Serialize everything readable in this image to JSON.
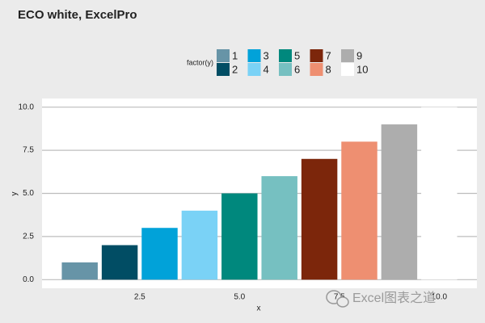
{
  "chart_data": {
    "type": "bar",
    "title": "ECO white, ExcelPro",
    "x_label": "x",
    "y_label": "y",
    "x": [
      1,
      2,
      3,
      4,
      5,
      6,
      7,
      8,
      9,
      10
    ],
    "values": [
      1,
      2,
      3,
      4,
      5,
      6,
      7,
      8,
      9,
      10
    ],
    "colors": [
      "#6794a7",
      "#014d64",
      "#01a2d9",
      "#7ad2f6",
      "#00887d",
      "#76c0c1",
      "#7c260b",
      "#ee8f71",
      "#adadad",
      "#ffffff"
    ],
    "legend": {
      "title": "factor(y)",
      "labels": [
        "1",
        "2",
        "3",
        "4",
        "5",
        "6",
        "7",
        "8",
        "9",
        "10"
      ]
    },
    "xlim": [
      0.055,
      10.945
    ],
    "xticks": [
      2.5,
      {
        "value": 5,
        "label": "5.0"
      },
      7.5,
      {
        "value": 10,
        "label": "10.0"
      }
    ],
    "ylim": [
      -0.5,
      10.5
    ],
    "yticks": [
      {
        "value": 0,
        "label": "0.0"
      },
      2.5,
      {
        "value": 5,
        "label": "5.0"
      },
      7.5,
      {
        "value": 10,
        "label": "10.0"
      }
    ],
    "grid": true,
    "watermark": "Excel图表之道"
  }
}
